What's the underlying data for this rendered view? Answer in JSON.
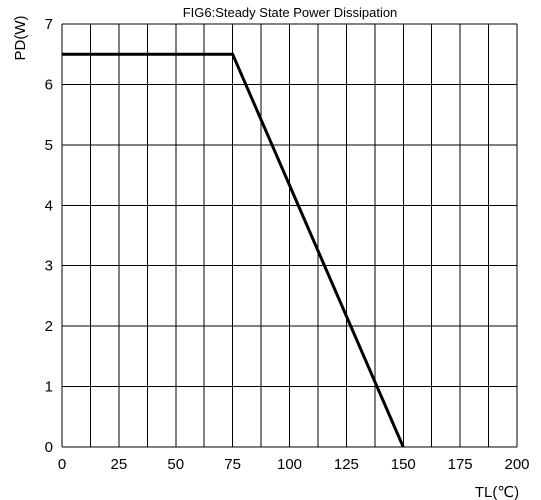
{
  "chart_data": {
    "type": "line",
    "title": "FIG6:Steady State Power Dissipation",
    "xlabel": "TL(℃)",
    "ylabel": "PD(W)",
    "xlim": [
      0,
      200
    ],
    "ylim": [
      0,
      7
    ],
    "x_ticks": [
      0,
      25,
      50,
      75,
      100,
      125,
      150,
      175,
      200
    ],
    "y_ticks": [
      0,
      1,
      2,
      3,
      4,
      5,
      6,
      7
    ],
    "grid": true,
    "x_grid_step": 12.5,
    "y_grid_step": 1,
    "series": [
      {
        "x": [
          0,
          75,
          150
        ],
        "y": [
          6.5,
          6.5,
          0
        ],
        "color": "#000000"
      }
    ]
  }
}
